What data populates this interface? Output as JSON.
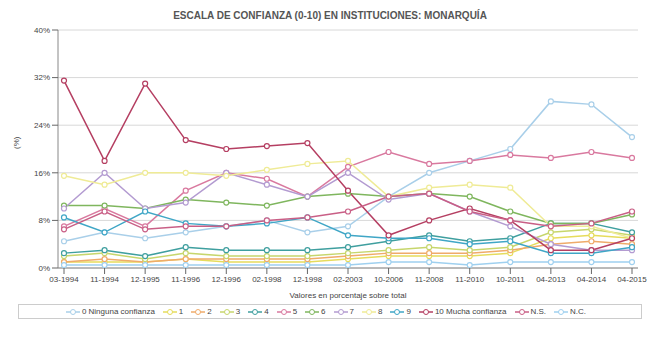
{
  "chart_data": {
    "type": "line",
    "title": "ESCALA DE CONFIANZA (0-10) EN INSTITUCIONES: MONARQUÍA",
    "x_label": "Valores en porcentaje sobre total",
    "y_label": "(%)",
    "categories": [
      "03-1994",
      "11-1994",
      "12-1995",
      "11-1996",
      "12-1996",
      "02-1998",
      "12-1998",
      "02-2003",
      "10-2006",
      "11-2008",
      "11-2010",
      "10-2011",
      "04-2013",
      "04-2014",
      "04-2015"
    ],
    "ylim": [
      0,
      40
    ],
    "yticks": [
      {
        "value": 0,
        "label": "0%"
      },
      {
        "value": 8,
        "label": "8%"
      },
      {
        "value": 16,
        "label": "16%"
      },
      {
        "value": 24,
        "label": "24%"
      },
      {
        "value": 32,
        "label": "32%"
      },
      {
        "value": 40,
        "label": "40%"
      }
    ],
    "grid": true,
    "legend": "bottom",
    "marker": "circle",
    "series": [
      {
        "name": "0 Ninguna confianza",
        "color": "#a9cfe9",
        "values": [
          4.5,
          6,
          5,
          6,
          7,
          8,
          6,
          7,
          12,
          16,
          18,
          20,
          28,
          27.5,
          22
        ]
      },
      {
        "name": "1",
        "color": "#e6dc5c",
        "values": [
          1,
          1,
          1,
          1.5,
          1,
          1,
          1,
          1.5,
          2,
          2,
          2,
          2.5,
          5,
          5.5,
          5
        ]
      },
      {
        "name": "2",
        "color": "#efab6a",
        "values": [
          1,
          1.5,
          1,
          1.5,
          1.5,
          1.5,
          1.5,
          2,
          2.5,
          2.5,
          2.5,
          3,
          4,
          4.5,
          4
        ]
      },
      {
        "name": "3",
        "color": "#c7d66c",
        "values": [
          2,
          2.5,
          1.5,
          2.5,
          2,
          2,
          2,
          2.5,
          3,
          3.5,
          3,
          3.5,
          6,
          6.5,
          5.5
        ]
      },
      {
        "name": "4",
        "color": "#3f9f9f",
        "values": [
          2.5,
          3,
          2,
          3.5,
          3,
          3,
          3,
          3.5,
          4.5,
          5.5,
          4.5,
          5,
          7.5,
          7.5,
          6
        ]
      },
      {
        "name": "5",
        "color": "#d9799f",
        "values": [
          7,
          10,
          7,
          13,
          16,
          15,
          12,
          17,
          19.5,
          17.5,
          18,
          19,
          18.5,
          19.5,
          18.5
        ]
      },
      {
        "name": "6",
        "color": "#7fb65e",
        "values": [
          10.5,
          10.5,
          10,
          11.5,
          11,
          10.5,
          12,
          12.5,
          12,
          12.5,
          12,
          9.5,
          7.5,
          7.5,
          9
        ]
      },
      {
        "name": "7",
        "color": "#b39bd1",
        "values": [
          10,
          16,
          10,
          11,
          16,
          14,
          12,
          16,
          11.5,
          12.5,
          9.5,
          7,
          4,
          3,
          3
        ]
      },
      {
        "name": "8",
        "color": "#efeb96",
        "values": [
          15.5,
          14,
          16,
          16,
          15.5,
          16.5,
          17.5,
          18,
          12,
          13.5,
          14,
          13.5,
          7,
          7,
          5
        ]
      },
      {
        "name": "9",
        "color": "#3fa6c6",
        "values": [
          8.5,
          6,
          9.5,
          7.5,
          7,
          7.5,
          8.5,
          5.5,
          5,
          5,
          4,
          4.5,
          2.5,
          2.5,
          3.5
        ]
      },
      {
        "name": "10 Mucha confianza",
        "color": "#b53f62",
        "values": [
          31.5,
          18,
          31,
          21.5,
          20,
          20.5,
          21,
          13,
          5.5,
          8,
          10,
          8,
          3,
          3,
          5
        ]
      },
      {
        "name": "N.S.",
        "color": "#c95f86",
        "values": [
          6.5,
          9.5,
          6.5,
          7,
          7,
          8,
          8.5,
          9.5,
          12,
          12.5,
          9.5,
          8,
          7,
          7.5,
          9.5
        ]
      },
      {
        "name": "N.C.",
        "color": "#9fd0ef",
        "values": [
          0.5,
          0.5,
          0.5,
          0.5,
          0.5,
          0.5,
          0.5,
          0.5,
          1,
          1,
          0.5,
          1,
          1,
          1,
          1
        ]
      }
    ]
  }
}
